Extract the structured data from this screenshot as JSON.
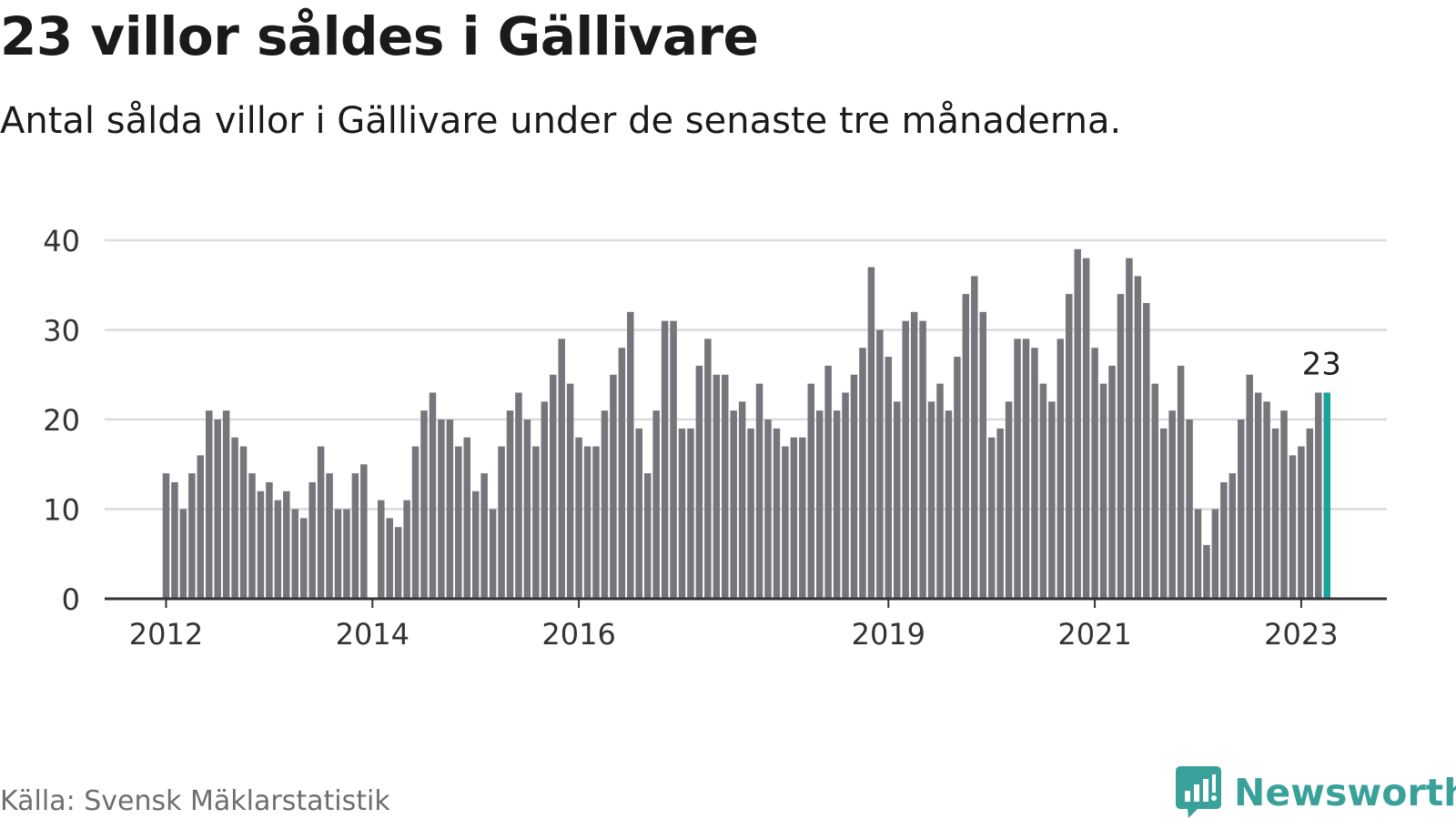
{
  "title": "23 villor såldes i Gällivare",
  "subtitle": "Antal sålda villor i Gällivare under de senaste tre månaderna.",
  "source": "Källa: Svensk Mäklarstatistik",
  "brand": {
    "name": "Newsworthy",
    "logo_icon": "speech-bubble-bar-chart-icon",
    "color": "#3aa19a"
  },
  "colors": {
    "bar": "#76757c",
    "highlight": "#1aa39a",
    "grid": "#dcdcdc",
    "axis": "#333333",
    "text": "#333333"
  },
  "chart_data": {
    "type": "bar",
    "title": "",
    "xlabel": "",
    "ylabel": "",
    "ylim": [
      0,
      40
    ],
    "yticks": [
      0,
      10,
      20,
      30,
      40
    ],
    "grid": true,
    "xtick_labels": [
      {
        "label": "2012",
        "index": 0
      },
      {
        "label": "2014",
        "index": 24
      },
      {
        "label": "2016",
        "index": 48
      },
      {
        "label": "2019",
        "index": 84
      },
      {
        "label": "2021",
        "index": 108
      },
      {
        "label": "2023",
        "index": 132
      }
    ],
    "first_month": "2012-01",
    "values": [
      14,
      13,
      10,
      14,
      16,
      21,
      20,
      21,
      18,
      17,
      14,
      12,
      13,
      11,
      12,
      10,
      9,
      13,
      17,
      14,
      10,
      10,
      14,
      15,
      0,
      11,
      9,
      8,
      11,
      17,
      21,
      23,
      20,
      20,
      17,
      18,
      12,
      14,
      10,
      17,
      21,
      23,
      20,
      17,
      22,
      25,
      29,
      24,
      18,
      17,
      17,
      21,
      25,
      28,
      32,
      19,
      14,
      21,
      31,
      31,
      19,
      19,
      26,
      29,
      25,
      25,
      21,
      22,
      19,
      24,
      20,
      19,
      17,
      18,
      18,
      24,
      21,
      26,
      21,
      23,
      25,
      28,
      37,
      30,
      27,
      22,
      31,
      32,
      31,
      22,
      24,
      21,
      27,
      34,
      36,
      32,
      18,
      19,
      22,
      29,
      29,
      28,
      24,
      22,
      29,
      34,
      39,
      38,
      28,
      24,
      26,
      34,
      38,
      36,
      33,
      24,
      19,
      21,
      26,
      20,
      10,
      6,
      10,
      13,
      14,
      20,
      25,
      23,
      22,
      19,
      21,
      16,
      17,
      19,
      23,
      23
    ],
    "highlight_index": 135,
    "annotations": [
      {
        "index": 135,
        "text": "23"
      }
    ]
  }
}
